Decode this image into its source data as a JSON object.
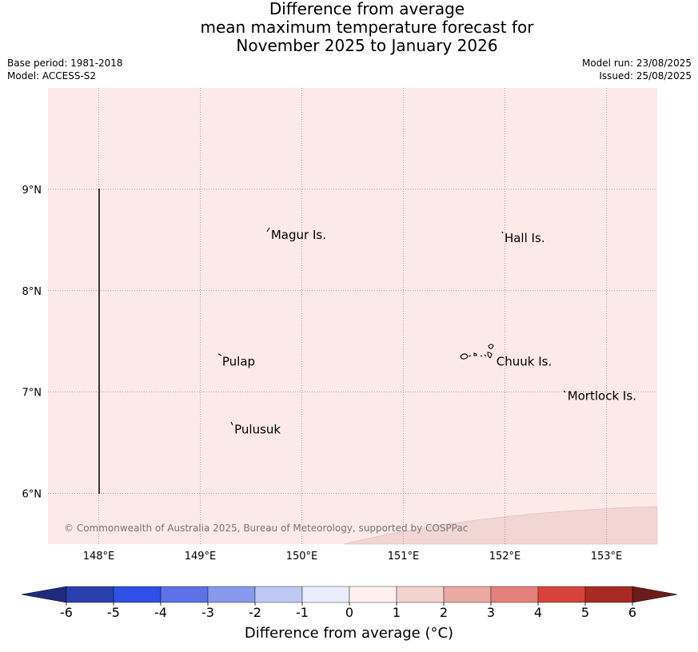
{
  "title": {
    "line1": "Difference from average",
    "line2": "mean maximum temperature forecast for",
    "line3": "November 2025 to January 2026"
  },
  "meta": {
    "base_period": "Base period: 1981-2018",
    "model": "Model: ACCESS-S2",
    "model_run": "Model run: 23/08/2025",
    "issued": "Issued: 25/08/2025"
  },
  "map": {
    "lon_range": [
      147.5,
      153.5
    ],
    "lat_range": [
      5.5,
      10.0
    ],
    "lon_ticks": [
      {
        "value": 148,
        "label": "148°E"
      },
      {
        "value": 149,
        "label": "149°E"
      },
      {
        "value": 150,
        "label": "150°E"
      },
      {
        "value": 151,
        "label": "151°E"
      },
      {
        "value": 152,
        "label": "152°E"
      },
      {
        "value": 153,
        "label": "153°E"
      }
    ],
    "lat_ticks": [
      {
        "value": 9,
        "label": "9°N"
      },
      {
        "value": 8,
        "label": "8°N"
      },
      {
        "value": 7,
        "label": "7°N"
      },
      {
        "value": 6,
        "label": "6°N"
      }
    ],
    "fill_color": "#fbeae8",
    "secondary_fill_color": "#f2d6d4",
    "places": [
      {
        "name": "Magur Is.",
        "lon": 149.68,
        "lat": 8.55
      },
      {
        "name": "Hall Is.",
        "lon": 151.98,
        "lat": 8.52
      },
      {
        "name": "Pulap",
        "lon": 149.2,
        "lat": 7.3
      },
      {
        "name": "Chuuk Is.",
        "lon": 151.9,
        "lat": 7.3
      },
      {
        "name": "Mortlock Is.",
        "lon": 152.6,
        "lat": 6.96
      },
      {
        "name": "Pulusuk",
        "lon": 149.32,
        "lat": 6.63
      }
    ],
    "copyright": "© Commonwealth of Australia 2025, Bureau of Meteorology, supported by COSPPac"
  },
  "colorbar": {
    "label": "Difference from average (°C)",
    "ticks": [
      "-6",
      "-5",
      "-4",
      "-3",
      "-2",
      "-1",
      "0",
      "1",
      "2",
      "3",
      "4",
      "5",
      "6"
    ],
    "colors": [
      "#2b40af",
      "#2f4fe6",
      "#5b72e8",
      "#8799ec",
      "#c0c8f4",
      "#e9ecfb",
      "#fdf0ee",
      "#f3d3cf",
      "#eaa9a3",
      "#e5817a",
      "#d7433b",
      "#a92a23"
    ],
    "under_color": "#1e2b80",
    "over_color": "#6d1b18"
  }
}
